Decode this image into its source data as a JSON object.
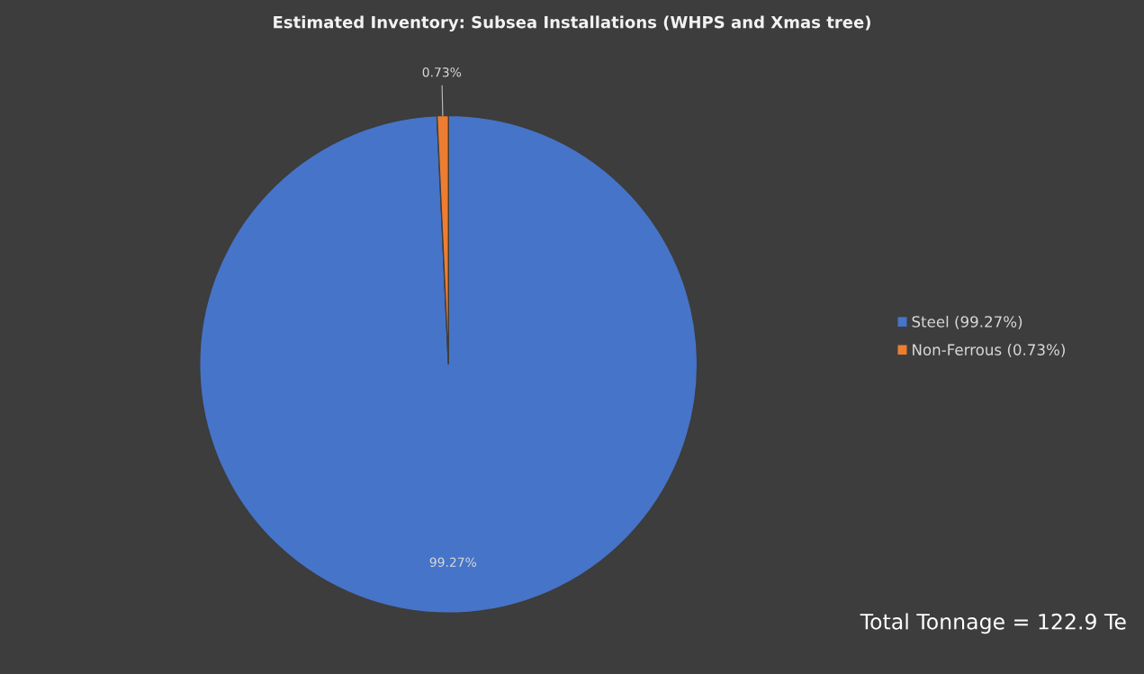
{
  "chart_data": {
    "type": "pie",
    "title": "Estimated Inventory: Subsea Installations (WHPS and Xmas tree)",
    "categories": [
      "Steel (99.27%)",
      "Non-Ferrous (0.73%)"
    ],
    "values": [
      99.27,
      0.73
    ],
    "colors": [
      "#4674c8",
      "#ed7d31"
    ],
    "value_labels": [
      "99.27%",
      "0.73%"
    ],
    "legend": "right",
    "annotations": [
      "Total Tonnage = 122.9 Te"
    ]
  }
}
